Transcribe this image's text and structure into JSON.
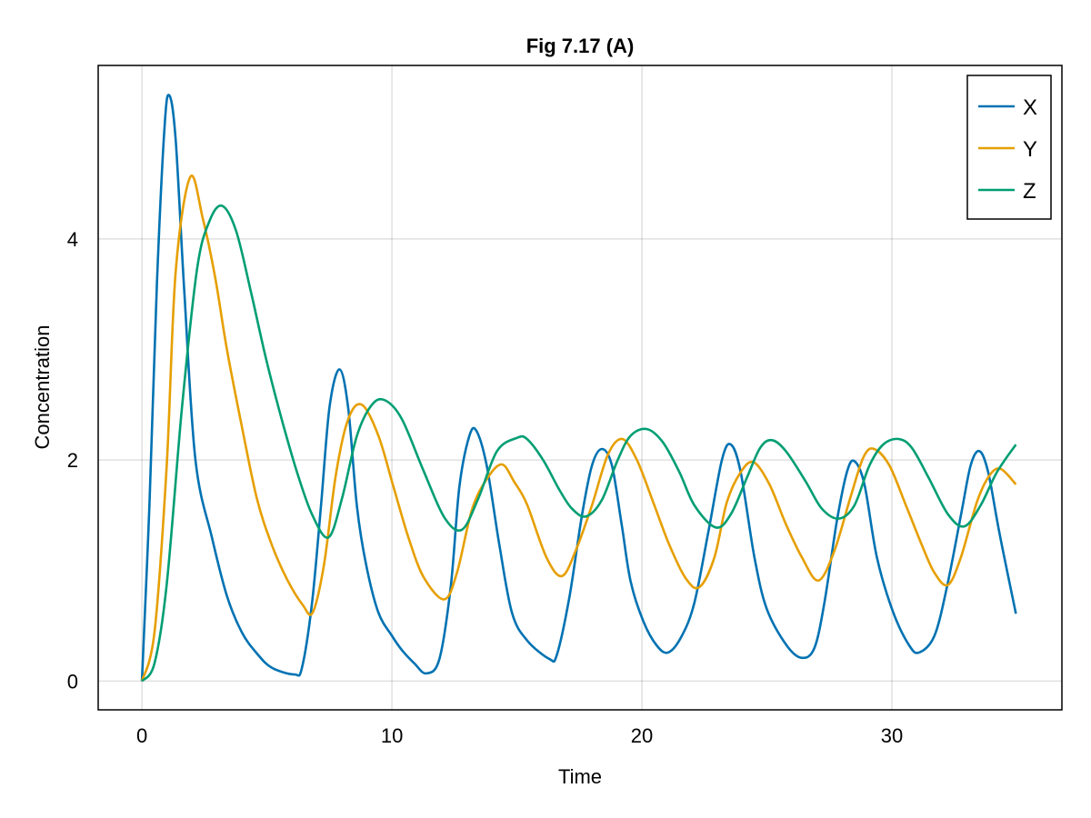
{
  "chart_data": {
    "type": "line",
    "title": "Fig 7.17 (A)",
    "xlabel": "Time",
    "ylabel": "Concentration",
    "xlim": [
      -1.75,
      36.8
    ],
    "ylim": [
      -0.26,
      5.57
    ],
    "xticks": [
      0,
      10,
      20,
      30
    ],
    "yticks": [
      0,
      2,
      4
    ],
    "grid": true,
    "legend": "top-right",
    "series": [
      {
        "name": "X",
        "color": "#0072B2",
        "x": [
          0,
          0.3,
          0.6,
          0.9,
          1.09,
          1.35,
          1.7,
          2.14,
          2.8,
          3.4,
          4.0,
          4.6,
          5.2,
          6.1,
          6.4,
          6.8,
          7.16,
          7.5,
          7.9,
          8.25,
          8.6,
          8.97,
          9.46,
          10.0,
          10.4,
          10.9,
          11.37,
          11.9,
          12.36,
          12.7,
          13.1,
          13.39,
          13.8,
          14.3,
          14.8,
          15.4,
          16.3,
          16.6,
          17.1,
          17.6,
          18.0,
          18.4,
          18.8,
          19.2,
          19.55,
          20.06,
          20.6,
          21.06,
          21.6,
          22.1,
          22.65,
          23.2,
          23.56,
          23.95,
          24.5,
          25.0,
          25.8,
          26.4,
          26.9,
          27.3,
          27.8,
          28.2,
          28.5,
          28.9,
          29.4,
          30.04,
          30.7,
          31.1,
          31.7,
          32.2,
          32.76,
          33.15,
          33.5,
          33.85,
          34.3,
          34.96
        ],
        "y": [
          0,
          1.6,
          3.6,
          5.0,
          5.3,
          4.9,
          3.5,
          2.0,
          1.3,
          0.77,
          0.44,
          0.25,
          0.12,
          0.06,
          0.12,
          0.7,
          1.58,
          2.47,
          2.82,
          2.47,
          1.58,
          1.05,
          0.62,
          0.41,
          0.28,
          0.16,
          0.07,
          0.2,
          0.87,
          1.76,
          2.22,
          2.26,
          1.94,
          1.23,
          0.62,
          0.37,
          0.2,
          0.24,
          0.76,
          1.5,
          1.95,
          2.1,
          1.95,
          1.4,
          0.9,
          0.54,
          0.32,
          0.26,
          0.41,
          0.71,
          1.34,
          2.0,
          2.14,
          1.89,
          1.12,
          0.65,
          0.32,
          0.21,
          0.3,
          0.71,
          1.45,
          1.89,
          1.99,
          1.78,
          1.12,
          0.63,
          0.32,
          0.26,
          0.41,
          0.85,
          1.5,
          1.95,
          2.08,
          1.89,
          1.34,
          0.61
        ]
      },
      {
        "name": "Y",
        "color": "#E69F00",
        "x": [
          0,
          0.5,
          0.99,
          1.35,
          1.93,
          2.44,
          2.93,
          3.4,
          4.0,
          4.6,
          5.2,
          5.83,
          6.43,
          6.83,
          7.28,
          7.76,
          8.25,
          8.8,
          9.46,
          10.06,
          10.66,
          11.27,
          12.09,
          12.6,
          13.2,
          13.8,
          14.4,
          14.9,
          15.4,
          16.18,
          16.8,
          17.35,
          18.0,
          18.64,
          19.22,
          19.8,
          20.45,
          21.1,
          21.75,
          22.3,
          22.9,
          23.4,
          23.95,
          24.47,
          25.1,
          25.76,
          26.4,
          27.06,
          27.7,
          28.35,
          28.87,
          29.29,
          29.9,
          30.56,
          31.2,
          31.7,
          32.24,
          32.76,
          33.4,
          33.9,
          34.35,
          34.96
        ],
        "y": [
          0,
          0.44,
          1.94,
          3.7,
          4.56,
          4.18,
          3.65,
          3.0,
          2.3,
          1.65,
          1.23,
          0.91,
          0.69,
          0.62,
          1.05,
          1.87,
          2.37,
          2.5,
          2.22,
          1.76,
          1.3,
          0.94,
          0.74,
          0.98,
          1.55,
          1.83,
          1.96,
          1.8,
          1.6,
          1.12,
          0.95,
          1.18,
          1.59,
          2.05,
          2.19,
          2.0,
          1.62,
          1.23,
          0.93,
          0.85,
          1.12,
          1.62,
          1.89,
          1.98,
          1.78,
          1.42,
          1.12,
          0.91,
          1.18,
          1.67,
          2.03,
          2.1,
          1.95,
          1.59,
          1.23,
          0.98,
          0.87,
          1.12,
          1.62,
          1.86,
          1.92,
          1.78
        ]
      },
      {
        "name": "Z",
        "color": "#009E73",
        "x": [
          0,
          0.5,
          0.99,
          1.6,
          2.2,
          2.68,
          3.2,
          3.77,
          4.38,
          4.98,
          5.59,
          6.19,
          6.8,
          7.46,
          8.0,
          8.6,
          9.2,
          9.73,
          10.4,
          11.27,
          12.1,
          12.8,
          13.45,
          14.2,
          15.0,
          15.4,
          16.05,
          16.7,
          17.2,
          17.77,
          18.4,
          19.03,
          19.55,
          20.2,
          20.84,
          21.5,
          22.1,
          22.95,
          23.56,
          24.2,
          24.73,
          25.2,
          25.76,
          26.54,
          27.2,
          27.88,
          28.5,
          29.1,
          29.65,
          30.27,
          30.8,
          31.47,
          32.24,
          32.9,
          33.55,
          34.2,
          34.96
        ],
        "y": [
          0,
          0.16,
          0.87,
          2.47,
          3.72,
          4.15,
          4.3,
          4.07,
          3.5,
          2.9,
          2.37,
          1.9,
          1.51,
          1.3,
          1.65,
          2.22,
          2.5,
          2.54,
          2.37,
          1.9,
          1.48,
          1.37,
          1.65,
          2.08,
          2.2,
          2.19,
          2.0,
          1.73,
          1.56,
          1.49,
          1.64,
          2.0,
          2.22,
          2.28,
          2.16,
          1.89,
          1.59,
          1.39,
          1.51,
          1.84,
          2.11,
          2.18,
          2.08,
          1.81,
          1.56,
          1.47,
          1.59,
          1.95,
          2.14,
          2.19,
          2.11,
          1.84,
          1.51,
          1.4,
          1.59,
          1.89,
          2.14
        ]
      }
    ]
  }
}
